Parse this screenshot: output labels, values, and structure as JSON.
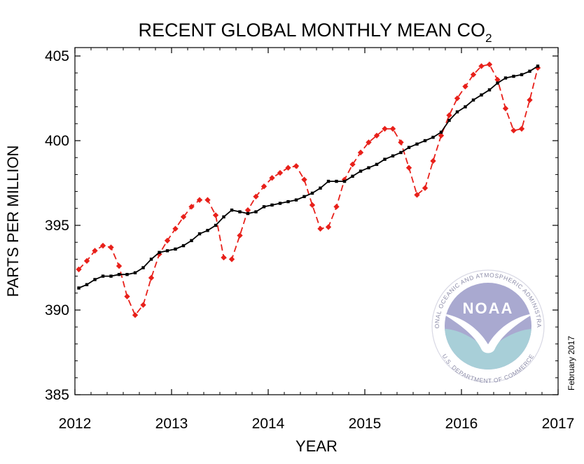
{
  "chart_data": {
    "type": "line",
    "title": "RECENT GLOBAL MONTHLY MEAN CO",
    "title_subscript": "2",
    "xlabel": "YEAR",
    "ylabel": "PARTS PER MILLION",
    "xlim": [
      2012,
      2017
    ],
    "ylim": [
      385,
      405
    ],
    "xticks": [
      2012,
      2013,
      2014,
      2015,
      2016,
      2017
    ],
    "yticks": [
      385,
      390,
      395,
      400,
      405
    ],
    "grid": false,
    "x_start": 2012.04,
    "x_step": 0.08333,
    "series": [
      {
        "color": "#e8201a",
        "style": "dashed",
        "marker": "diamond",
        "values": [
          392.4,
          392.9,
          393.5,
          393.8,
          393.7,
          392.6,
          390.8,
          389.7,
          390.3,
          391.9,
          393.3,
          394.1,
          394.8,
          395.5,
          396.1,
          396.5,
          396.5,
          395.6,
          393.1,
          393.0,
          394.4,
          395.9,
          396.7,
          397.3,
          397.8,
          398.1,
          398.4,
          398.5,
          397.7,
          396.2,
          394.8,
          394.9,
          396.1,
          397.7,
          398.6,
          399.3,
          399.9,
          400.3,
          400.7,
          400.7,
          399.9,
          398.4,
          396.8,
          397.2,
          398.8,
          400.3,
          401.5,
          402.5,
          403.2,
          403.9,
          404.4,
          404.5,
          403.6,
          401.9,
          400.6,
          400.7,
          402.4,
          404.3
        ]
      },
      {
        "color": "#000000",
        "style": "solid",
        "marker": "square",
        "values": [
          391.3,
          391.5,
          391.8,
          392.0,
          392.0,
          392.1,
          392.1,
          392.2,
          392.5,
          393.0,
          393.4,
          393.5,
          393.6,
          393.8,
          394.1,
          394.5,
          394.7,
          395.0,
          395.5,
          395.9,
          395.8,
          395.7,
          395.8,
          396.1,
          396.2,
          396.3,
          396.4,
          396.5,
          396.7,
          396.9,
          397.2,
          397.6,
          397.6,
          397.6,
          397.9,
          398.2,
          398.4,
          398.6,
          398.9,
          399.1,
          399.3,
          399.6,
          399.8,
          400.0,
          400.2,
          400.5,
          401.2,
          401.7,
          402.0,
          402.4,
          402.7,
          403.0,
          403.4,
          403.7,
          403.8,
          403.9,
          404.1,
          404.4
        ]
      }
    ],
    "annotation": "February 2017"
  },
  "seal": {
    "center_word": "NOAA",
    "ring_text_top": "NATIONAL OCEANIC AND ATMOSPHERIC ADMINISTRATION",
    "ring_text_bottom": "U.S. DEPARTMENT OF COMMERCE",
    "colors": {
      "sky": "#a9a9d0",
      "sea": "#a8cfd8",
      "ring": "#ffffff",
      "text": "#8c8ca8"
    }
  }
}
